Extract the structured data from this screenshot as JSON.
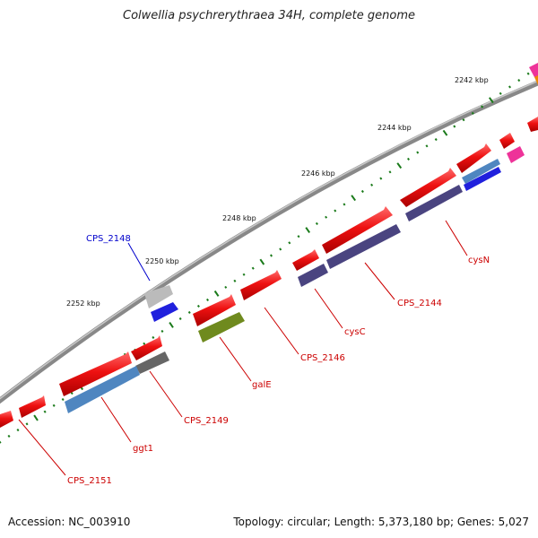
{
  "title": "Colwellia psychrerythraea 34H, complete genome",
  "footer": {
    "accession": "Accession: NC_003910",
    "summary": "Topology: circular; Length: 5,373,180 bp; Genes: 5,027"
  },
  "ticks": [
    {
      "label": "2242 kbp"
    },
    {
      "label": "2244 kbp"
    },
    {
      "label": "2246 kbp"
    },
    {
      "label": "2248 kbp"
    },
    {
      "label": "2250 kbp"
    },
    {
      "label": "2252 kbp"
    }
  ],
  "genes": [
    {
      "label": "cysN",
      "color": "#cc0000"
    },
    {
      "label": "CPS_2144",
      "color": "#cc0000"
    },
    {
      "label": "cysC",
      "color": "#cc0000"
    },
    {
      "label": "CPS_2146",
      "color": "#cc0000"
    },
    {
      "label": "galE",
      "color": "#cc0000"
    },
    {
      "label": "CPS_2148",
      "color": "#0000cc"
    },
    {
      "label": "CPS_2149",
      "color": "#cc0000"
    },
    {
      "label": "ggt1",
      "color": "#cc0000"
    },
    {
      "label": "CPS_2151",
      "color": "#cc0000"
    }
  ],
  "colors": {
    "cds": "#ee1111",
    "cds_shade": "#991111",
    "backbone": "#777777",
    "tick": "#1a7a1a",
    "cog_purple": "#4a4480",
    "cog_blue": "#2020dd",
    "cog_steel": "#4f86c0",
    "cog_olive": "#6f8a1e",
    "cog_gray": "#666666",
    "cog_light": "#bbbbbb",
    "cog_pink": "#ee3399",
    "cog_orange": "#ee8800"
  }
}
